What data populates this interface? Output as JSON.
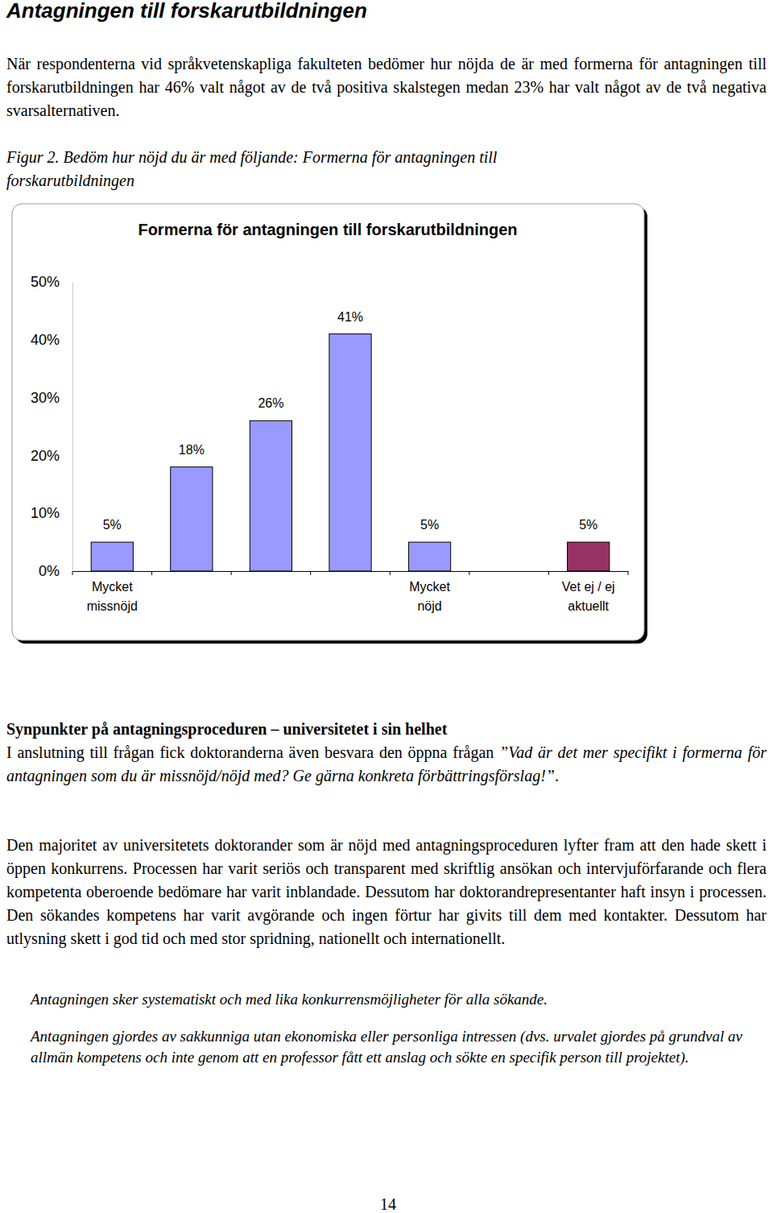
{
  "heading": "Antagningen till forskarutbildningen",
  "intro": "När respondenterna vid språkvetenskapliga fakulteten bedömer hur nöjda de är med formerna för antagningen till forskarutbildningen har 46% valt något av de två positiva skalstegen medan 23% har valt något av de två negativa svarsalternativen.",
  "figure_caption": "Figur 2. Bedöm hur nöjd du är med följande: Formerna för antagningen till forskarutbildningen",
  "chart_data": {
    "type": "bar",
    "title": "Formerna för antagningen till forskarutbildningen",
    "categories": [
      "Mycket missnöjd",
      null,
      null,
      null,
      "Mycket nöjd",
      null,
      "Vet ej / ej aktuellt"
    ],
    "values": [
      5,
      18,
      26,
      41,
      5,
      null,
      5
    ],
    "value_labels": [
      "5%",
      "18%",
      "26%",
      "41%",
      "5%",
      null,
      "5%"
    ],
    "colors": [
      "#9999ff",
      "#9999ff",
      "#9999ff",
      "#9999ff",
      "#9999ff",
      null,
      "#993366"
    ],
    "data_labels": true,
    "grid": false,
    "ylim": [
      0,
      50
    ],
    "yticks": [
      {
        "value": 0,
        "label": "0%"
      },
      {
        "value": 10,
        "label": "10%"
      },
      {
        "value": 20,
        "label": "20%"
      },
      {
        "value": 30,
        "label": "30%"
      },
      {
        "value": 40,
        "label": "40%"
      },
      {
        "value": 50,
        "label": "50%"
      }
    ]
  },
  "section_heading": "Synpunkter på antagningsproceduren – universitetet i sin helhet",
  "paragraph_1": {
    "text": "I anslutning till frågan fick doktoranderna även besvara den öppna frågan",
    "question": "”Vad är det mer specifikt i formerna för antagningen som du är missnöjd/nöjd med? Ge gärna konkreta förbättringsförslag!”",
    "end": "."
  },
  "paragraph_2": "Den majoritet av universitetets doktorander som är nöjd med antagningsproceduren lyfter fram att den hade skett i öppen konkurrens. Processen har varit seriös och transparent med skriftlig ansökan och intervjuförfarande och flera kompetenta oberoende bedömare har varit inblandade. Dessutom har doktorandrepresentanter haft insyn i processen. Den sökandes kompetens har varit avgörande och ingen förtur har givits till dem med kontakter. Dessutom har utlysning skett i god tid och med stor spridning, nationellt och internationellt.",
  "quotes": [
    "Antagningen sker systematiskt och med lika konkurrensmöjligheter för alla sökande.",
    "Antagningen gjordes av sakkunniga utan ekonomiska eller personliga intressen (dvs. urvalet gjordes på grundval av allmän kompetens och inte genom att en professor fått ett anslag och sökte en specifik person till projektet)."
  ],
  "page_number": 14
}
